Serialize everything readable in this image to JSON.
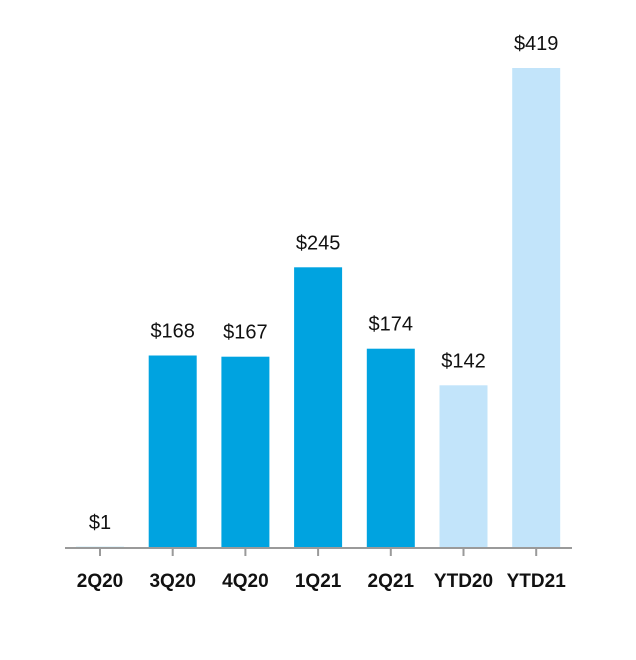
{
  "chart_data": {
    "type": "bar",
    "categories": [
      "2Q20",
      "3Q20",
      "4Q20",
      "1Q21",
      "2Q21",
      "YTD20",
      "YTD21"
    ],
    "values": [
      1,
      168,
      167,
      245,
      174,
      142,
      419
    ],
    "data_labels": [
      "$1",
      "$168",
      "$167",
      "$245",
      "$174",
      "$142",
      "$419"
    ],
    "bar_colors": [
      "#00a3e0",
      "#00a3e0",
      "#00a3e0",
      "#00a3e0",
      "#00a3e0",
      "#c2e4fa",
      "#c2e4fa"
    ],
    "axis_color": "#9a9a9a",
    "title": "",
    "xlabel": "",
    "ylabel": "",
    "ylim": [
      0,
      419
    ],
    "grid": false,
    "legend": "none"
  }
}
